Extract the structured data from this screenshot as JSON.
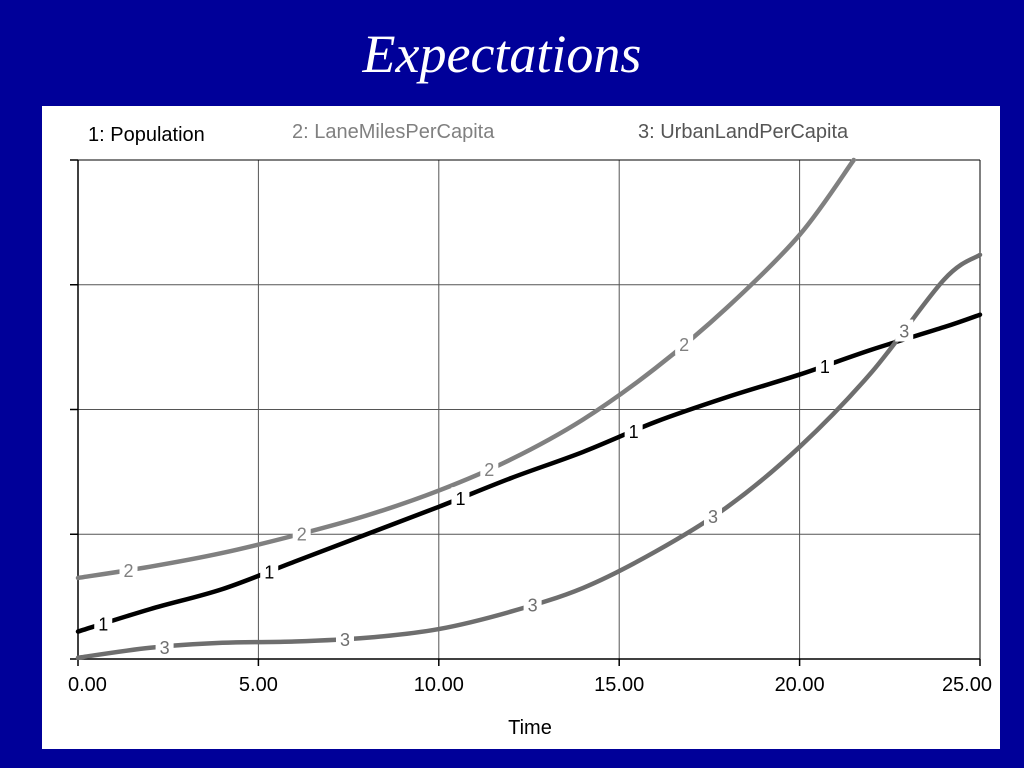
{
  "slide": {
    "title": "Expectations"
  },
  "chart_data": {
    "type": "line",
    "title": "",
    "xlabel": "Time",
    "ylabel": "",
    "xlim": [
      0,
      25
    ],
    "ylim": [
      0,
      4
    ],
    "x_ticks": [
      "0.00",
      "5.00",
      "10.00",
      "15.00",
      "20.00",
      "25.00"
    ],
    "grid": true,
    "legend": "top",
    "series": [
      {
        "name": "1: Population",
        "marker": "1",
        "color": "#000000",
        "x": [
          0,
          2,
          4,
          6,
          8,
          10,
          12,
          14,
          16,
          18,
          20,
          22,
          24,
          25
        ],
        "y": [
          0.22,
          0.4,
          0.56,
          0.78,
          1,
          1.22,
          1.45,
          1.66,
          1.9,
          2.1,
          2.28,
          2.48,
          2.66,
          2.76
        ]
      },
      {
        "name": "2: LaneMilesPerCapita",
        "marker": "2",
        "color": "#808080",
        "x": [
          0,
          2,
          4,
          6,
          8,
          10,
          12,
          14,
          16,
          18,
          20,
          21.5
        ],
        "y": [
          0.65,
          0.74,
          0.85,
          0.99,
          1.15,
          1.35,
          1.6,
          1.92,
          2.33,
          2.82,
          3.4,
          4
        ]
      },
      {
        "name": "3: UrbanLandPerCapita",
        "marker": "3",
        "color": "#6e6e6e",
        "x": [
          0,
          2,
          4,
          6,
          8,
          10,
          12,
          14,
          16,
          18,
          20,
          22,
          24,
          25
        ],
        "y": [
          0.01,
          0.09,
          0.13,
          0.14,
          0.17,
          0.24,
          0.38,
          0.57,
          0.86,
          1.22,
          1.7,
          2.3,
          3.04,
          3.24
        ]
      }
    ],
    "marker_positions": [
      {
        "series": 0,
        "x": [
          0.7,
          5.3,
          10.6,
          15.4,
          20.7
        ]
      },
      {
        "series": 1,
        "x": [
          1.4,
          6.2,
          11.4,
          16.8
        ]
      },
      {
        "series": 2,
        "x": [
          2.4,
          7.4,
          12.6,
          17.6,
          22.9
        ]
      }
    ]
  }
}
